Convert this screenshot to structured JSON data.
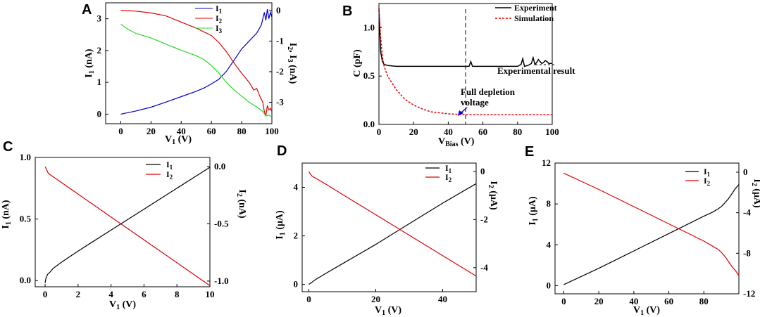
{
  "chart_data": [
    {
      "panel": "A",
      "type": "line",
      "xlabel": "V1 (V)",
      "ylabel": "I1 (nA)",
      "y2label": "I2, I3 (nA)",
      "xlim": [
        -10,
        100
      ],
      "ylim": [
        -0.3,
        3.5
      ],
      "y2lim": [
        -3.7,
        0.25
      ],
      "xticks": [
        0,
        20,
        40,
        60,
        80,
        100
      ],
      "yticks": [
        0,
        1,
        2,
        3
      ],
      "y2ticks": [
        0,
        -1,
        -2,
        -3
      ],
      "legend": [
        "I1",
        "I2",
        "I3"
      ],
      "series": [
        {
          "name": "I1",
          "axis": "left",
          "color": "#0000cc",
          "x": [
            0,
            10,
            20,
            30,
            40,
            50,
            55,
            60,
            65,
            70,
            75,
            80,
            85,
            90,
            93,
            95,
            96,
            97,
            98,
            99,
            100
          ],
          "y": [
            0,
            0.1,
            0.22,
            0.38,
            0.55,
            0.72,
            0.82,
            0.95,
            1.1,
            1.35,
            1.7,
            2.05,
            2.3,
            2.55,
            2.8,
            3.2,
            2.95,
            3.3,
            3.0,
            3.2,
            3.05
          ]
        },
        {
          "name": "I2",
          "axis": "right",
          "color": "#dd0000",
          "x": [
            0,
            10,
            20,
            30,
            40,
            50,
            60,
            65,
            70,
            75,
            80,
            85,
            88,
            90,
            92,
            94,
            95,
            96,
            97,
            98,
            99,
            100
          ],
          "y": [
            0,
            -0.02,
            -0.08,
            -0.18,
            -0.38,
            -0.58,
            -0.82,
            -1.05,
            -1.35,
            -1.72,
            -2.05,
            -2.35,
            -2.6,
            -2.55,
            -2.8,
            -3.0,
            -3.3,
            -3.45,
            -3.1,
            -3.25,
            -3.2,
            -3.3
          ]
        },
        {
          "name": "I3",
          "axis": "right",
          "color": "#22dd22",
          "x": [
            0,
            5,
            10,
            20,
            30,
            40,
            50,
            55,
            60,
            65,
            70,
            75,
            80,
            85,
            90,
            94,
            96,
            98,
            100
          ],
          "y": [
            -0.45,
            -0.62,
            -0.75,
            -0.9,
            -1.1,
            -1.3,
            -1.48,
            -1.6,
            -1.8,
            -2.05,
            -2.35,
            -2.6,
            -2.8,
            -3.0,
            -3.15,
            -3.3,
            -3.45,
            -3.42,
            -3.48
          ]
        }
      ]
    },
    {
      "panel": "B",
      "type": "line",
      "xlabel": "VBias (V)",
      "ylabel": "C (pF)",
      "xlim": [
        0,
        100
      ],
      "ylim": [
        0,
        1.25
      ],
      "xticks": [
        0,
        20,
        40,
        60,
        80,
        100
      ],
      "yticks": [
        0.0,
        0.5,
        1.0
      ],
      "legend": [
        "Experiment",
        "Simulation"
      ],
      "annotations": [
        "Experimental result",
        "Full depletion",
        "voltage"
      ],
      "full_depletion_voltage": 50,
      "series": [
        {
          "name": "Experiment",
          "color": "#000000",
          "x": [
            0,
            0.5,
            1,
            2,
            3,
            5,
            10,
            20,
            30,
            40,
            50,
            52,
            53,
            54,
            60,
            70,
            80,
            82,
            83,
            84,
            86,
            88,
            89,
            90,
            91,
            92,
            94,
            95,
            96,
            97,
            98,
            100
          ],
          "y": [
            1.2,
            0.95,
            0.75,
            0.65,
            0.62,
            0.61,
            0.6,
            0.6,
            0.6,
            0.6,
            0.6,
            0.6,
            0.65,
            0.6,
            0.6,
            0.6,
            0.6,
            0.62,
            0.68,
            0.6,
            0.61,
            0.63,
            0.69,
            0.62,
            0.64,
            0.67,
            0.63,
            0.64,
            0.66,
            0.65,
            0.63,
            0.63
          ]
        },
        {
          "name": "Simulation",
          "color": "#ee0000",
          "x": [
            0,
            1,
            2,
            3,
            5,
            10,
            15,
            20,
            25,
            30,
            40,
            50,
            60,
            80,
            100
          ],
          "y": [
            1.2,
            0.9,
            0.7,
            0.6,
            0.5,
            0.36,
            0.26,
            0.2,
            0.16,
            0.13,
            0.11,
            0.1,
            0.1,
            0.1,
            0.1
          ]
        }
      ]
    },
    {
      "panel": "C",
      "type": "line",
      "xlabel": "V1 (V)",
      "ylabel": "I1 (nA)",
      "y2label": "I2 (nA)",
      "xlim": [
        -0.6,
        10
      ],
      "ylim": [
        -0.05,
        1.0
      ],
      "y2lim": [
        -1.05,
        0.08
      ],
      "xticks": [
        0,
        2,
        4,
        6,
        8,
        10
      ],
      "yticks": [
        0.0,
        0.5,
        1.0
      ],
      "y2ticks": [
        0.0,
        -0.5,
        -1.0
      ],
      "legend": [
        "I1",
        "I2"
      ],
      "series": [
        {
          "name": "I1",
          "axis": "left",
          "color": "#000000",
          "x": [
            0,
            0.05,
            0.15,
            0.3,
            0.5,
            1,
            2,
            4,
            6,
            8,
            10
          ],
          "y": [
            -0.02,
            0.02,
            0.05,
            0.07,
            0.1,
            0.15,
            0.24,
            0.41,
            0.58,
            0.75,
            0.92
          ]
        },
        {
          "name": "I2",
          "axis": "right",
          "color": "#dd0000",
          "x": [
            0,
            0.1,
            0.2,
            0.4,
            1,
            2,
            4,
            6,
            8,
            10
          ],
          "y": [
            0.0,
            -0.03,
            -0.06,
            -0.08,
            -0.14,
            -0.24,
            -0.44,
            -0.64,
            -0.84,
            -1.04
          ]
        }
      ]
    },
    {
      "panel": "D",
      "type": "line",
      "xlabel": "V1 (V)",
      "ylabel": "I1 (μA)",
      "y2label": "I2 (μA)",
      "xlim": [
        -2,
        50
      ],
      "ylim": [
        -0.3,
        5.0
      ],
      "y2lim": [
        -5.0,
        0.35
      ],
      "xticks": [
        0,
        20,
        40
      ],
      "yticks": [
        0,
        2,
        4
      ],
      "y2ticks": [
        0,
        -2,
        -4
      ],
      "legend": [
        "I1",
        "I2"
      ],
      "series": [
        {
          "name": "I1",
          "axis": "left",
          "color": "#000000",
          "x": [
            0,
            0.5,
            1,
            2,
            5,
            10,
            20,
            30,
            40,
            50
          ],
          "y": [
            0,
            0.05,
            0.1,
            0.2,
            0.45,
            0.85,
            1.65,
            2.5,
            3.35,
            4.15
          ]
        },
        {
          "name": "I2",
          "axis": "right",
          "color": "#dd0000",
          "x": [
            0,
            0.5,
            1,
            2,
            5,
            10,
            20,
            30,
            40,
            50
          ],
          "y": [
            0,
            -0.12,
            -0.2,
            -0.28,
            -0.52,
            -0.95,
            -1.8,
            -2.65,
            -3.5,
            -4.35
          ]
        }
      ]
    },
    {
      "panel": "E",
      "type": "line",
      "xlabel": "V1 (V)",
      "ylabel": "I1 (μA)",
      "y2label": "I2 (μA)",
      "xlim": [
        -5,
        100
      ],
      "ylim": [
        -0.8,
        12
      ],
      "y2lim": [
        -12,
        0.9
      ],
      "xticks": [
        0,
        20,
        40,
        60,
        80
      ],
      "yticks": [
        0,
        4,
        8,
        12
      ],
      "y2ticks": [
        0,
        -4,
        -8,
        -12
      ],
      "legend": [
        "I1",
        "I2"
      ],
      "series": [
        {
          "name": "I1",
          "axis": "left",
          "color": "#000000",
          "x": [
            0,
            10,
            20,
            40,
            60,
            80,
            85,
            88,
            90,
            92,
            94,
            96,
            98,
            100
          ],
          "y": [
            0.1,
            0.9,
            1.7,
            3.4,
            5.1,
            6.8,
            7.2,
            7.5,
            7.75,
            8.1,
            8.5,
            9.0,
            9.5,
            9.9
          ]
        },
        {
          "name": "I2",
          "axis": "right",
          "color": "#dd0000",
          "x": [
            0,
            10,
            20,
            40,
            60,
            80,
            85,
            88,
            90,
            92,
            94,
            96,
            98,
            100
          ],
          "y": [
            -0.1,
            -0.9,
            -1.7,
            -3.4,
            -5.1,
            -6.8,
            -7.3,
            -7.6,
            -7.9,
            -8.3,
            -8.8,
            -9.3,
            -9.7,
            -10.2
          ]
        }
      ]
    }
  ]
}
